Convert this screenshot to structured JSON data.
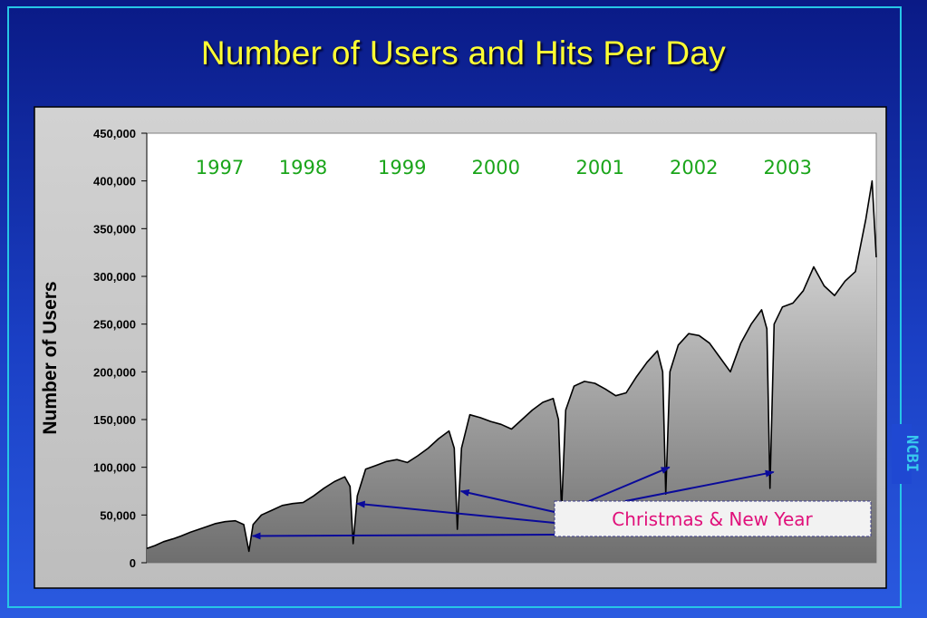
{
  "slide": {
    "title": "Number of Users and Hits Per Day",
    "side_label": "NCBI",
    "colors": {
      "background": "#1535b8",
      "title": "#ffff33",
      "frame": "#27c6e6",
      "year_labels": "#1aa51a",
      "annotation_text": "#e0107a",
      "arrows": "#0a0a9a"
    }
  },
  "chart_data": {
    "type": "area",
    "title": "",
    "xlabel": "",
    "ylabel": "Number of Users",
    "ylim": [
      0,
      450000
    ],
    "yticks": [
      0,
      50000,
      100000,
      150000,
      200000,
      250000,
      300000,
      350000,
      400000,
      450000
    ],
    "ytick_labels": [
      "0",
      "50,000",
      "100,000",
      "150,000",
      "200,000",
      "250,000",
      "300,000",
      "350,000",
      "400,000",
      "450,000"
    ],
    "xlim": [
      1997.0,
      2004.0
    ],
    "grid": false,
    "year_labels": [
      {
        "label": "1997",
        "x": 1997.7
      },
      {
        "label": "1998",
        "x": 1998.5
      },
      {
        "label": "1999",
        "x": 1999.45
      },
      {
        "label": "2000",
        "x": 2000.35
      },
      {
        "label": "2001",
        "x": 2001.35
      },
      {
        "label": "2002",
        "x": 2002.25
      },
      {
        "label": "2003",
        "x": 2003.15
      }
    ],
    "annotation": {
      "text": "Christmas & New Year",
      "points": [
        {
          "x": 1997.98,
          "y": 28000
        },
        {
          "x": 1998.98,
          "y": 62000
        },
        {
          "x": 1999.98,
          "y": 75000
        },
        {
          "x": 2000.98,
          "y": 55000
        },
        {
          "x": 2001.98,
          "y": 100000
        },
        {
          "x": 2002.98,
          "y": 95000
        }
      ]
    },
    "series": [
      {
        "values": [
          [
            1997.0,
            15000
          ],
          [
            1997.08,
            18000
          ],
          [
            1997.16,
            22000
          ],
          [
            1997.25,
            25000
          ],
          [
            1997.33,
            28000
          ],
          [
            1997.42,
            32000
          ],
          [
            1997.5,
            35000
          ],
          [
            1997.58,
            38000
          ],
          [
            1997.66,
            41000
          ],
          [
            1997.75,
            43000
          ],
          [
            1997.85,
            44000
          ],
          [
            1997.93,
            40000
          ],
          [
            1997.98,
            12000
          ],
          [
            1998.02,
            40000
          ],
          [
            1998.1,
            50000
          ],
          [
            1998.2,
            55000
          ],
          [
            1998.3,
            60000
          ],
          [
            1998.4,
            62000
          ],
          [
            1998.5,
            63000
          ],
          [
            1998.6,
            70000
          ],
          [
            1998.7,
            78000
          ],
          [
            1998.8,
            85000
          ],
          [
            1998.9,
            90000
          ],
          [
            1998.95,
            80000
          ],
          [
            1998.98,
            20000
          ],
          [
            1999.02,
            70000
          ],
          [
            1999.1,
            98000
          ],
          [
            1999.2,
            102000
          ],
          [
            1999.3,
            106000
          ],
          [
            1999.4,
            108000
          ],
          [
            1999.5,
            105000
          ],
          [
            1999.6,
            112000
          ],
          [
            1999.7,
            120000
          ],
          [
            1999.8,
            130000
          ],
          [
            1999.9,
            138000
          ],
          [
            1999.95,
            120000
          ],
          [
            1999.98,
            35000
          ],
          [
            2000.02,
            120000
          ],
          [
            2000.1,
            155000
          ],
          [
            2000.2,
            152000
          ],
          [
            2000.3,
            148000
          ],
          [
            2000.4,
            145000
          ],
          [
            2000.5,
            140000
          ],
          [
            2000.6,
            150000
          ],
          [
            2000.7,
            160000
          ],
          [
            2000.8,
            168000
          ],
          [
            2000.9,
            172000
          ],
          [
            2000.95,
            150000
          ],
          [
            2000.98,
            55000
          ],
          [
            2001.02,
            160000
          ],
          [
            2001.1,
            185000
          ],
          [
            2001.2,
            190000
          ],
          [
            2001.3,
            188000
          ],
          [
            2001.4,
            182000
          ],
          [
            2001.5,
            175000
          ],
          [
            2001.6,
            178000
          ],
          [
            2001.7,
            195000
          ],
          [
            2001.8,
            210000
          ],
          [
            2001.9,
            222000
          ],
          [
            2001.95,
            200000
          ],
          [
            2001.98,
            72000
          ],
          [
            2002.02,
            200000
          ],
          [
            2002.1,
            228000
          ],
          [
            2002.2,
            240000
          ],
          [
            2002.3,
            238000
          ],
          [
            2002.4,
            230000
          ],
          [
            2002.5,
            215000
          ],
          [
            2002.6,
            200000
          ],
          [
            2002.7,
            230000
          ],
          [
            2002.8,
            250000
          ],
          [
            2002.9,
            265000
          ],
          [
            2002.95,
            245000
          ],
          [
            2002.98,
            78000
          ],
          [
            2003.02,
            250000
          ],
          [
            2003.1,
            268000
          ],
          [
            2003.2,
            272000
          ],
          [
            2003.3,
            285000
          ],
          [
            2003.4,
            310000
          ],
          [
            2003.5,
            290000
          ],
          [
            2003.6,
            280000
          ],
          [
            2003.7,
            295000
          ],
          [
            2003.8,
            305000
          ],
          [
            2003.9,
            360000
          ],
          [
            2003.96,
            400000
          ],
          [
            2004.0,
            320000
          ]
        ]
      }
    ]
  }
}
